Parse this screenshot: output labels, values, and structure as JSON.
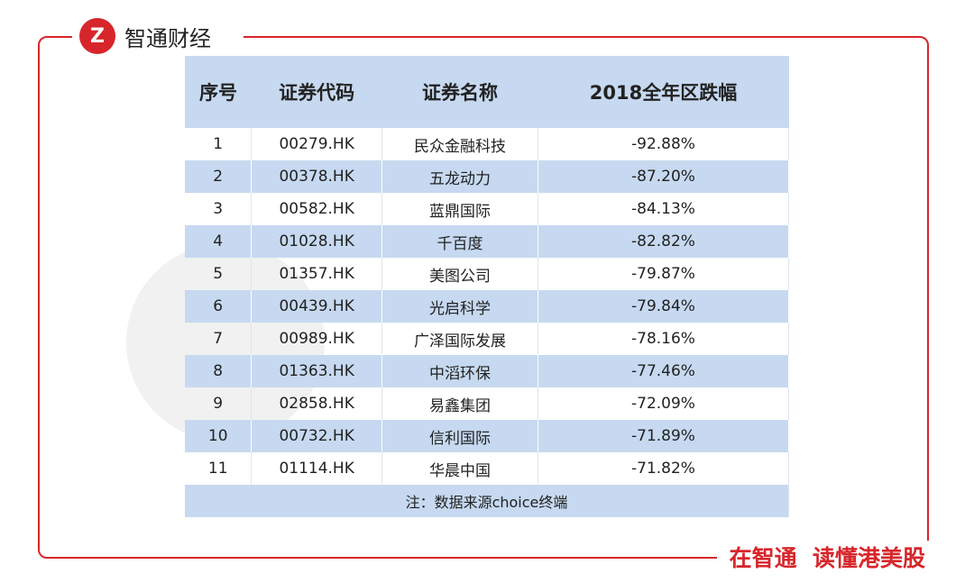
{
  "header": {
    "brand": "智通财经"
  },
  "table": {
    "columns": [
      "序号",
      "证券代码",
      "证券名称",
      "2018全年区跌幅"
    ],
    "rows": [
      [
        "1",
        "00279.HK",
        "民众金融科技",
        "-92.88%"
      ],
      [
        "2",
        "00378.HK",
        "五龙动力",
        "-87.20%"
      ],
      [
        "3",
        "00582.HK",
        "蓝鼎国际",
        "-84.13%"
      ],
      [
        "4",
        "01028.HK",
        "千百度",
        "-82.82%"
      ],
      [
        "5",
        "01357.HK",
        "美图公司",
        "-79.87%"
      ],
      [
        "6",
        "00439.HK",
        "光启科学",
        "-79.84%"
      ],
      [
        "7",
        "00989.HK",
        "广泽国际发展",
        "-78.16%"
      ],
      [
        "8",
        "01363.HK",
        "中滔环保",
        "-77.46%"
      ],
      [
        "9",
        "02858.HK",
        "易鑫集团",
        "-72.09%"
      ],
      [
        "10",
        "00732.HK",
        "信利国际",
        "-71.89%"
      ],
      [
        "11",
        "01114.HK",
        "华晨中国",
        "-71.82%"
      ]
    ],
    "note": "注：数据来源choice终端"
  },
  "footer": {
    "slogan": "在智通  读懂港美股"
  }
}
